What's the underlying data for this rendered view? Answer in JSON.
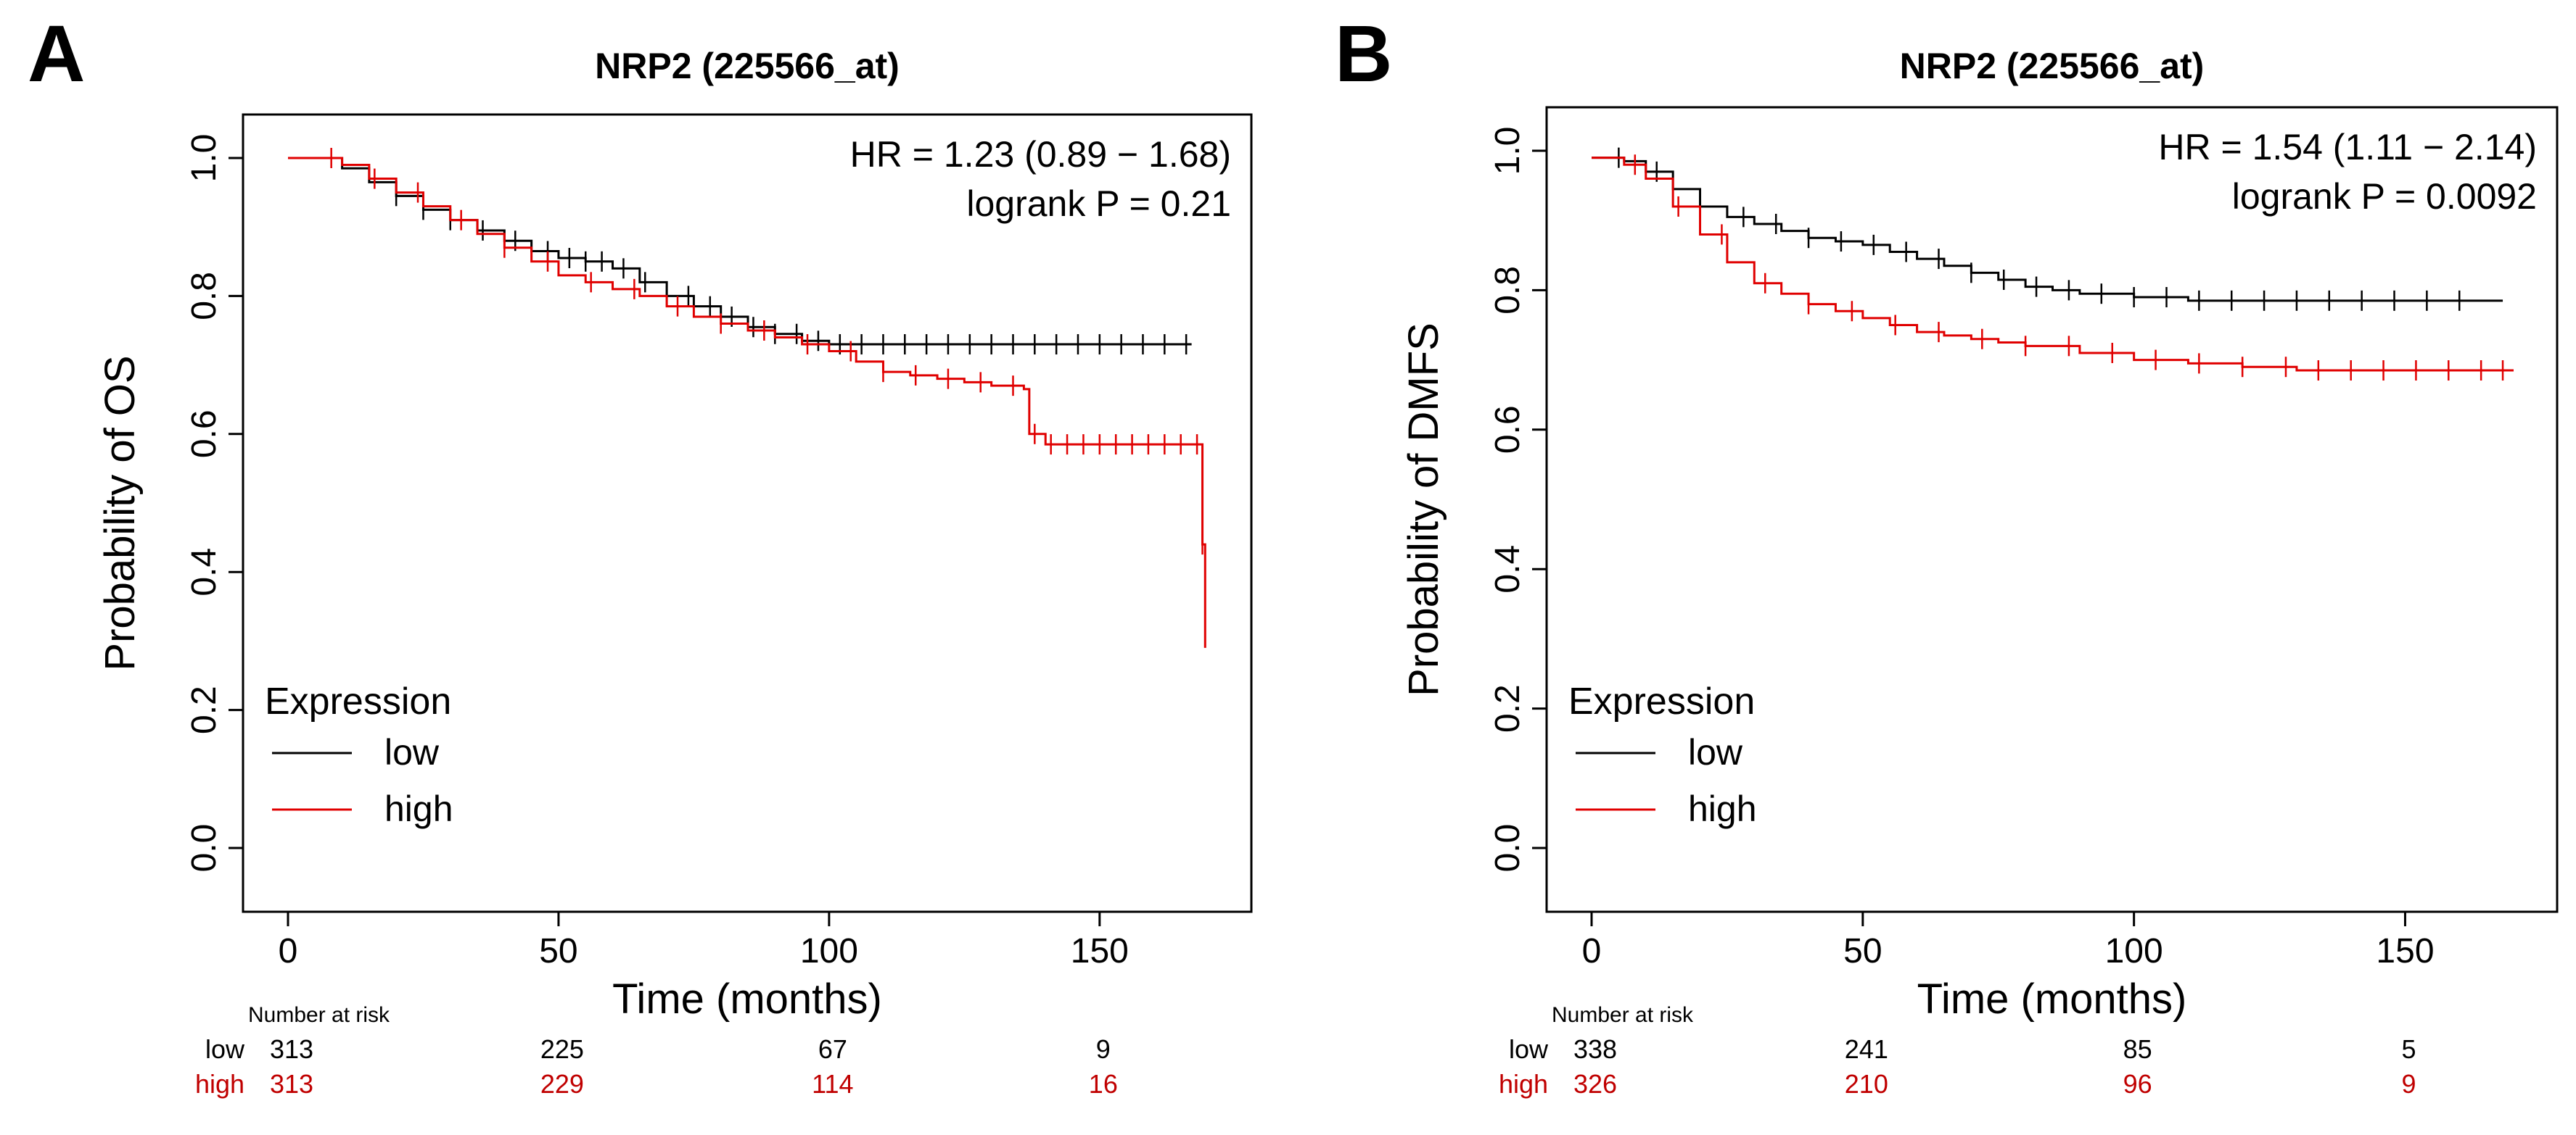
{
  "chart_data": [
    {
      "type": "line",
      "panel_label": "A",
      "title": "NRP2 (225566_at)",
      "xlabel": "Time (months)",
      "ylabel": "Probability of OS",
      "xlim": [
        0,
        170
      ],
      "ylim": [
        0,
        1
      ],
      "xticks": [
        "0",
        "50",
        "100",
        "150"
      ],
      "yticks": [
        "0.0",
        "0.2",
        "0.4",
        "0.6",
        "0.8",
        "1.0"
      ],
      "stats": {
        "hr": "HR = 1.23 (0.89 − 1.68)",
        "p": "logrank P = 0.21"
      },
      "legend": {
        "title": "Expression",
        "placement": "bottom-left"
      },
      "series": [
        {
          "name": "low",
          "color": "#000000",
          "x": [
            0,
            5,
            10,
            15,
            20,
            25,
            30,
            35,
            40,
            45,
            50,
            55,
            60,
            65,
            70,
            75,
            80,
            85,
            90,
            95,
            100,
            110,
            120,
            130,
            140,
            150,
            160,
            167
          ],
          "y": [
            1.0,
            1.0,
            0.985,
            0.965,
            0.945,
            0.925,
            0.91,
            0.895,
            0.88,
            0.865,
            0.855,
            0.85,
            0.84,
            0.82,
            0.8,
            0.785,
            0.77,
            0.755,
            0.745,
            0.735,
            0.73,
            0.73,
            0.73,
            0.73,
            0.73,
            0.73,
            0.73,
            0.73
          ],
          "censor_x": [
            20,
            25,
            30,
            36,
            42,
            48,
            52,
            55,
            58,
            62,
            66,
            70,
            74,
            78,
            82,
            86,
            90,
            94,
            98,
            102,
            106,
            110,
            114,
            118,
            122,
            126,
            130,
            134,
            138,
            142,
            146,
            150,
            154,
            158,
            162,
            166
          ]
        },
        {
          "name": "high",
          "color": "#e00000",
          "x": [
            0,
            5,
            10,
            15,
            20,
            25,
            30,
            35,
            40,
            45,
            50,
            55,
            60,
            65,
            70,
            75,
            80,
            85,
            90,
            95,
            100,
            105,
            110,
            115,
            120,
            125,
            130,
            136,
            137,
            140,
            150,
            160,
            168,
            169,
            169.5
          ],
          "y": [
            1.0,
            1.0,
            0.99,
            0.97,
            0.95,
            0.93,
            0.91,
            0.89,
            0.87,
            0.85,
            0.83,
            0.82,
            0.81,
            0.8,
            0.785,
            0.77,
            0.76,
            0.75,
            0.74,
            0.73,
            0.72,
            0.705,
            0.69,
            0.685,
            0.68,
            0.675,
            0.67,
            0.665,
            0.6,
            0.585,
            0.585,
            0.585,
            0.585,
            0.44,
            0.29
          ],
          "censor_x": [
            8,
            16,
            24,
            32,
            40,
            48,
            56,
            64,
            72,
            80,
            88,
            96,
            104,
            110,
            116,
            122,
            128,
            134,
            138,
            141,
            144,
            147,
            150,
            153,
            156,
            159,
            162,
            165,
            168,
            169
          ]
        }
      ],
      "risk_table": {
        "title": "Number at risk",
        "times": [
          0,
          50,
          100,
          150
        ],
        "rows": [
          {
            "label": "low",
            "color": "#000000",
            "values": [
              "313",
              "225",
              "67",
              "9"
            ]
          },
          {
            "label": "high",
            "color": "#c00000",
            "values": [
              "313",
              "229",
              "114",
              "16"
            ]
          }
        ]
      }
    },
    {
      "type": "line",
      "panel_label": "B",
      "title": "NRP2 (225566_at)",
      "xlabel": "Time (months)",
      "ylabel": "Probability of DMFS",
      "xlim": [
        0,
        170
      ],
      "ylim": [
        0,
        1
      ],
      "xticks": [
        "0",
        "50",
        "100",
        "150"
      ],
      "yticks": [
        "0.0",
        "0.2",
        "0.4",
        "0.6",
        "0.8",
        "1.0"
      ],
      "stats": {
        "hr": "HR = 1.54 (1.11 − 2.14)",
        "p": "logrank P = 0.0092"
      },
      "legend": {
        "title": "Expression",
        "placement": "bottom-left"
      },
      "series": [
        {
          "name": "low",
          "color": "#000000",
          "x": [
            0,
            3,
            6,
            10,
            15,
            20,
            25,
            30,
            35,
            40,
            45,
            50,
            55,
            60,
            65,
            70,
            75,
            80,
            85,
            90,
            100,
            110,
            120,
            130,
            140,
            150,
            160,
            168
          ],
          "y": [
            0.99,
            0.99,
            0.985,
            0.97,
            0.945,
            0.92,
            0.905,
            0.895,
            0.885,
            0.875,
            0.87,
            0.865,
            0.855,
            0.845,
            0.835,
            0.825,
            0.815,
            0.805,
            0.8,
            0.795,
            0.79,
            0.785,
            0.785,
            0.785,
            0.785,
            0.785,
            0.785,
            0.785
          ],
          "censor_x": [
            5,
            12,
            20,
            28,
            34,
            40,
            46,
            52,
            58,
            64,
            70,
            76,
            82,
            88,
            94,
            100,
            106,
            112,
            118,
            124,
            130,
            136,
            142,
            148,
            154,
            160
          ]
        },
        {
          "name": "high",
          "color": "#e00000",
          "x": [
            0,
            3,
            6,
            10,
            15,
            20,
            25,
            30,
            35,
            40,
            45,
            50,
            55,
            60,
            65,
            70,
            75,
            80,
            90,
            100,
            110,
            120,
            130,
            140,
            150,
            160,
            170
          ],
          "y": [
            0.99,
            0.99,
            0.98,
            0.96,
            0.92,
            0.88,
            0.84,
            0.81,
            0.795,
            0.78,
            0.77,
            0.76,
            0.75,
            0.74,
            0.735,
            0.73,
            0.725,
            0.72,
            0.71,
            0.7,
            0.695,
            0.69,
            0.685,
            0.685,
            0.685,
            0.685,
            0.685
          ],
          "censor_x": [
            8,
            16,
            24,
            32,
            40,
            48,
            56,
            64,
            72,
            80,
            88,
            96,
            104,
            112,
            120,
            128,
            134,
            140,
            146,
            152,
            158,
            164,
            168
          ]
        }
      ],
      "risk_table": {
        "title": "Number at risk",
        "times": [
          0,
          50,
          100,
          150
        ],
        "rows": [
          {
            "label": "low",
            "color": "#000000",
            "values": [
              "338",
              "241",
              "85",
              "5"
            ]
          },
          {
            "label": "high",
            "color": "#c00000",
            "values": [
              "326",
              "210",
              "96",
              "9"
            ]
          }
        ]
      }
    }
  ]
}
